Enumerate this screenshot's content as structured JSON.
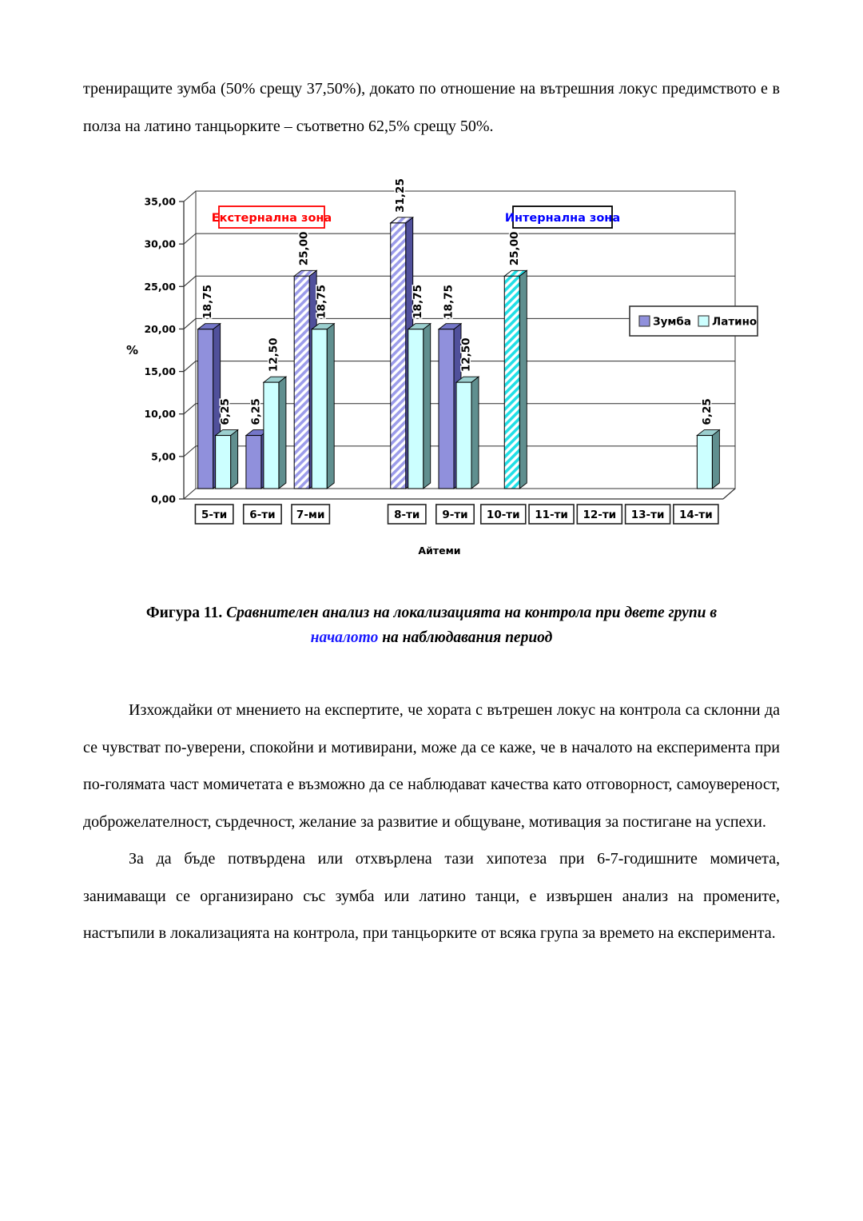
{
  "page": {
    "paragraph_top": "трениращите зумба (50% срещу 37,50%), докато по отношение на вътрешния локус предимството е в полза на латино танцьорките – съответно 62,5% срещу 50%.",
    "paragraph_1": "Изхождайки от мнението на експертите, че хората с вътрешен локус на контрола са склонни да се чувстват по-уверени, спокойни и мотивирани, може да се каже, че в началото на експеримента при по-голямата част момичетата е възможно да се наблюдават качества като отговорност, самоувереност, доброжелателност, сърдечност, желание за развитие и общуване, мотивация за постигане на успехи.",
    "paragraph_2": "За да бъде потвърдена или отхвърлена тази хипотеза при 6-7-годишните момичета, занимаващи се организирано със зумба или латино танци, е извършен анализ на промените, настъпили в локализацията на контрола, при танцьорките от всяка група за времето на експеримента."
  },
  "caption": {
    "prefix": "Фигура 11.",
    "line1_rest": "Сравнителен анализ на локализацията на контрола при двете групи в",
    "highlight": "началото",
    "line2_rest": "на наблюдавания период",
    "highlight_color": "#1a1aff"
  },
  "chart_data": {
    "type": "bar",
    "style": "3d-clustered",
    "title": "",
    "xlabel": "Айтеми",
    "ylabel": "%",
    "ylim": [
      0,
      35
    ],
    "ytick_step": 5,
    "ytick_labels": [
      "0,00",
      "5,00",
      "10,00",
      "15,00",
      "20,00",
      "25,00",
      "30,00",
      "35,00"
    ],
    "decimal_separator": ",",
    "grid": true,
    "categories": [
      "5-ти",
      "6-ти",
      "7-ми",
      "",
      "8-ти",
      "9-ти",
      "10-ти",
      "11-ти",
      "12-ти",
      "13-ти",
      "14-ти"
    ],
    "series": [
      {
        "name": "Зумба",
        "color": "#9090DC",
        "side_color": "#50509B",
        "top_color": "#7476C8",
        "hatch_color": "#9C9CEA",
        "values": [
          18.75,
          6.25,
          25.0,
          null,
          31.25,
          18.75,
          0,
          0,
          0,
          0,
          0
        ],
        "hatched": [
          false,
          false,
          true,
          false,
          true,
          false,
          false,
          false,
          false,
          false,
          false
        ]
      },
      {
        "name": "Латино",
        "color": "#CCFFFF",
        "side_color": "#608F8F",
        "top_color": "#9BCFCF",
        "hatch_color": "#20DFE6",
        "values": [
          6.25,
          12.5,
          18.75,
          null,
          18.75,
          12.5,
          25.0,
          0,
          0,
          0,
          6.25
        ],
        "hatched": [
          false,
          false,
          false,
          false,
          false,
          false,
          true,
          false,
          false,
          false,
          false
        ]
      }
    ],
    "annotations": [
      {
        "text": "Екстернална зона",
        "text_color": "#FF0000",
        "border_color": "#FF0000"
      },
      {
        "text": "Интернална зона",
        "text_color": "#0000FF",
        "border_color": "#000000"
      }
    ],
    "legend": {
      "position": "right",
      "entries": [
        "Зумба",
        "Латино"
      ]
    }
  }
}
